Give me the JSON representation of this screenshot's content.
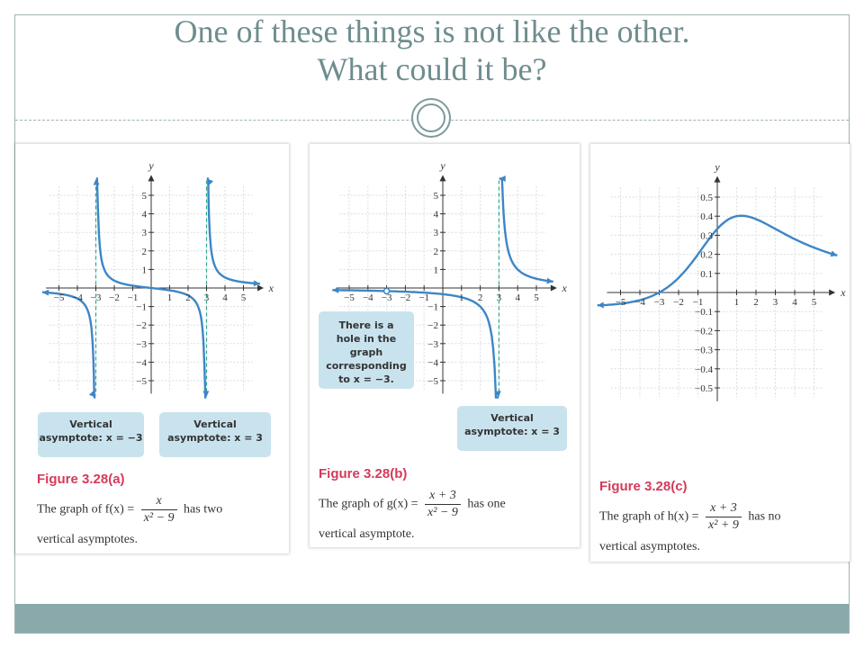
{
  "title": {
    "line1": "One of these things is not like the other.",
    "line2": "What could it be?"
  },
  "colors": {
    "accent": "#8aa9ab",
    "title": "#6f8d8f",
    "curve": "#3d86c6",
    "asymptote": "#2bab8e",
    "figure_label": "#d53a5a",
    "callout_bg": "#c9e3ee"
  },
  "panels": [
    {
      "axis_x": "x",
      "axis_y": "y",
      "callouts": [
        {
          "line1": "Vertical",
          "line2": "asymptote: x = −3"
        },
        {
          "line1": "Vertical",
          "line2": "asymptote: x = 3"
        }
      ],
      "figure": "Figure 3.28(a)",
      "cap_pre": "The graph of f(x) =",
      "cap_num": "x",
      "cap_den": "x² − 9",
      "cap_post": "has two",
      "cap_line2": "vertical asymptotes."
    },
    {
      "axis_x": "x",
      "axis_y": "y",
      "callouts": [
        {
          "line1": "There is a",
          "line2": "hole in the graph",
          "line3": "corresponding",
          "line4": "to x = −3."
        },
        {
          "line1": "Vertical",
          "line2": "asymptote: x = 3"
        }
      ],
      "figure": "Figure 3.28(b)",
      "cap_pre": "The graph of g(x) =",
      "cap_num": "x + 3",
      "cap_den": "x² − 9",
      "cap_post": "has one",
      "cap_line2": "vertical asymptote."
    },
    {
      "axis_x": "x",
      "axis_y": "y",
      "figure": "Figure 3.28(c)",
      "cap_pre": "The graph of h(x) =",
      "cap_num": "x + 3",
      "cap_den": "x² + 9",
      "cap_post": "has no",
      "cap_line2": "vertical asymptotes."
    }
  ],
  "ticks": {
    "int_x": [
      "−5",
      "−4",
      "−3",
      "−2",
      "−1",
      "1",
      "2",
      "3",
      "4",
      "5"
    ],
    "int_y_pos": [
      "5",
      "4",
      "3",
      "2",
      "1"
    ],
    "int_y_neg": [
      "−1",
      "−2",
      "−3",
      "−4",
      "−5"
    ],
    "dec_y_pos": [
      "0.5",
      "0.4",
      "0.3",
      "0.2",
      "0.1"
    ],
    "dec_y_neg": [
      "−0.1",
      "−0.2",
      "−0.3",
      "−0.4",
      "−0.5"
    ]
  }
}
